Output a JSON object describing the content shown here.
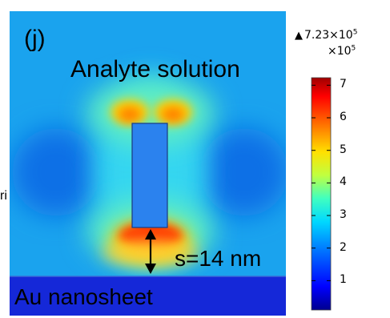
{
  "panel_label": "(j)",
  "medium_label": "Analyte solution",
  "gap_label": "s=14 nm",
  "substrate_label": "Au nanosheet",
  "clipped_text": "ri",
  "colorbar": {
    "max_prefix": "7.23×10",
    "max_exp": "5",
    "multiplier_prefix": "×10",
    "multiplier_exp": "5",
    "ticks": [
      "7",
      "6",
      "5",
      "4",
      "3",
      "2",
      "1"
    ],
    "tick_values": [
      7,
      6,
      5,
      4,
      3,
      2,
      1
    ],
    "range": [
      0.1,
      7.23
    ],
    "colors": [
      "#00008f",
      "#0000ff",
      "#0070ff",
      "#00d8ff",
      "#40ffc0",
      "#c0ff40",
      "#ffe000",
      "#ff7000",
      "#ff0000",
      "#a00000"
    ]
  },
  "colors": {
    "background_field": "#1aa3ee",
    "substrate": "#1528d8",
    "nanorod": "#2b82ee",
    "hotspot": "#ff2a00"
  },
  "icons": {
    "max_marker": "up-triangle-icon",
    "gap_arrow": "double-arrow-icon"
  }
}
